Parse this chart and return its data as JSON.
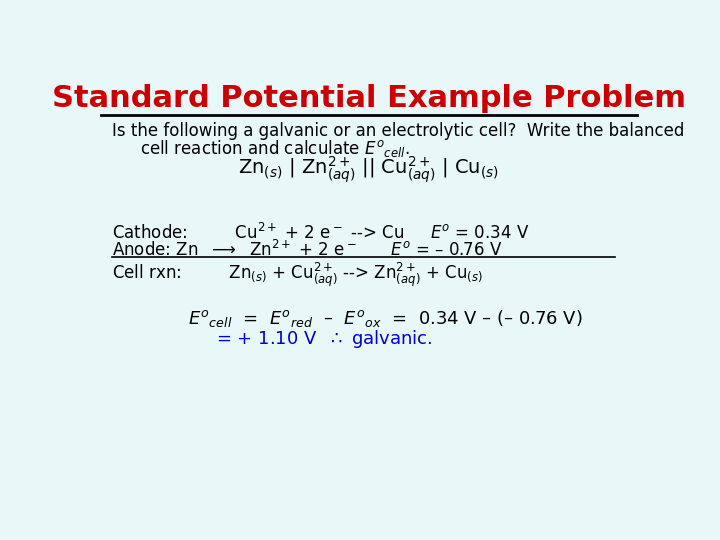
{
  "title": "Standard Potential Example Problem",
  "title_color": "#cc0000",
  "bg_color": "#e8f8f8",
  "body_text_color": "#000000",
  "blue_text_color": "#0000cc",
  "font_size_title": 22,
  "font_size_body": 12,
  "line_color": "#000000",
  "endash": "–"
}
